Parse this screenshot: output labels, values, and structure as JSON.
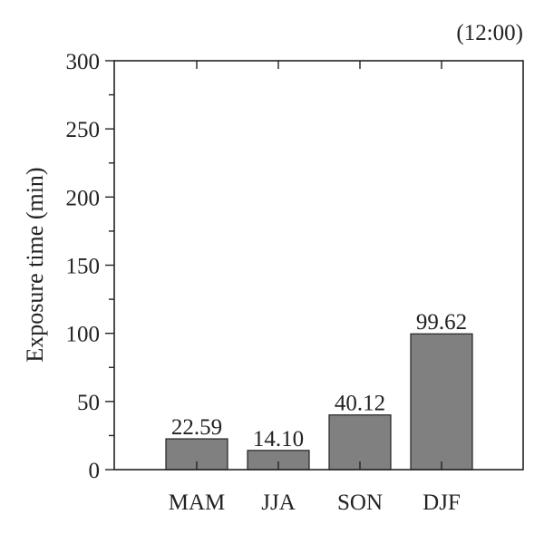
{
  "chart_data": {
    "type": "bar",
    "categories": [
      "MAM",
      "JJA",
      "SON",
      "DJF"
    ],
    "values": [
      22.59,
      14.1,
      40.12,
      99.62
    ],
    "value_labels": [
      "22.59",
      "14.10",
      "40.12",
      "99.62"
    ],
    "ylabel": "Exposure time (min)",
    "xlabel": "",
    "ylim": [
      0,
      300
    ],
    "yticks": [
      0,
      50,
      100,
      150,
      200,
      250,
      300
    ],
    "ytick_labels": [
      "0",
      "50",
      "100",
      "150",
      "200",
      "250",
      "300"
    ],
    "annotation": "(12:00)",
    "grid": false,
    "legend": "none",
    "bar_color": "#808080",
    "bar_edge_color": "#222222"
  }
}
